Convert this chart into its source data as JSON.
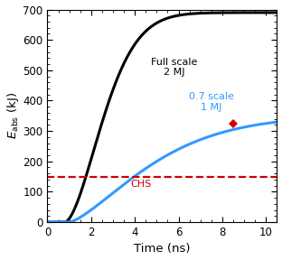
{
  "title": "",
  "xlabel": "Time (ns)",
  "ylabel": "$E_{\\mathrm{abs}}$ (kJ)",
  "xlim": [
    0,
    10.5
  ],
  "ylim": [
    0,
    700
  ],
  "yticks": [
    0,
    100,
    200,
    300,
    400,
    500,
    600,
    700
  ],
  "xticks": [
    0,
    2,
    4,
    6,
    8,
    10
  ],
  "chs_value": 150,
  "chs_label": "CHS",
  "full_scale_label": "Full scale\n2 MJ",
  "scale07_label": "0.7 scale\n1 MJ",
  "full_scale_color": "#000000",
  "scale07_color": "#3399ff",
  "chs_color": "#cc0000",
  "diamond_x": 8.5,
  "diamond_y": 325,
  "bg_color": "#ffffff",
  "linewidth": 2.2
}
